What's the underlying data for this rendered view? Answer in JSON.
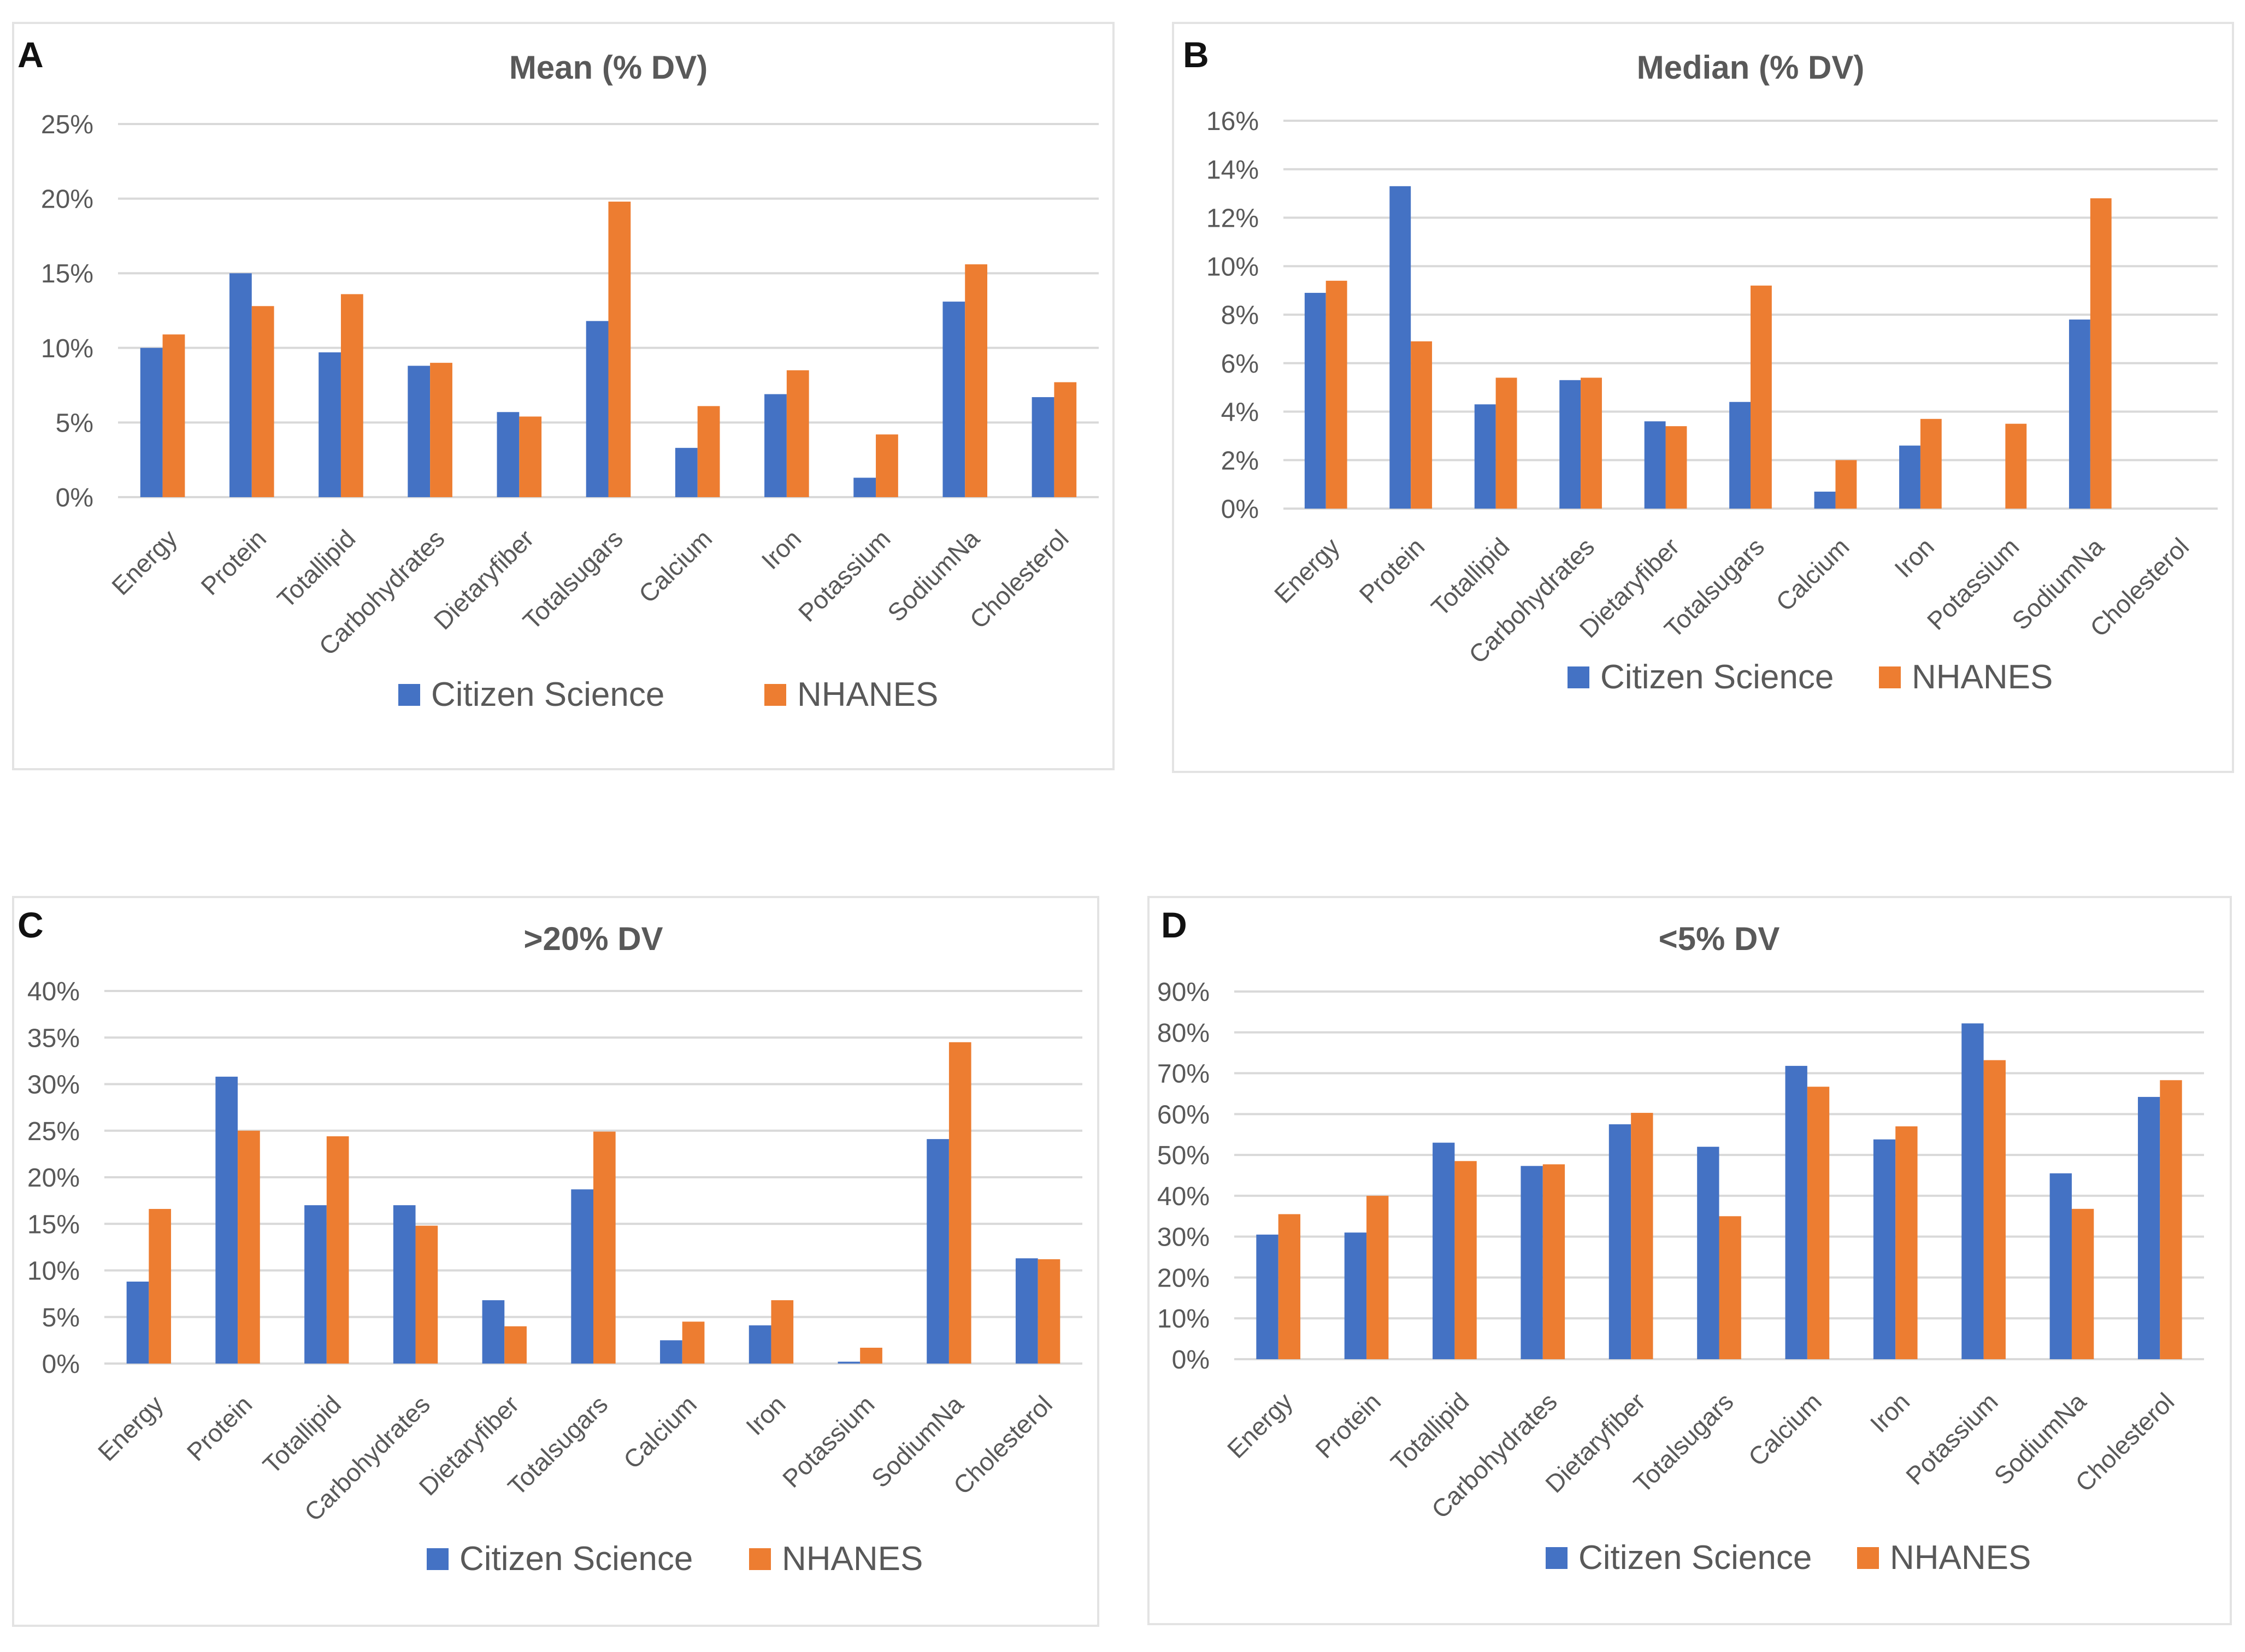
{
  "colors": {
    "citizen": "#4472c4",
    "nhanes": "#ed7d31",
    "grid": "#d9d9d9",
    "text": "#595959"
  },
  "chart_data": [
    {
      "panel": "A",
      "type": "bar",
      "title": "Mean (% DV)",
      "categories": [
        "Energy",
        "Protein",
        "Totallipid",
        "Carbohydrates",
        "Dietaryfiber",
        "Totalsugars",
        "Calcium",
        "Iron",
        "Potassium",
        "SodiumNa",
        "Cholesterol"
      ],
      "series": [
        {
          "name": "Citizen Science",
          "values": [
            10.0,
            15.0,
            9.7,
            8.8,
            5.7,
            11.8,
            3.3,
            6.9,
            1.3,
            13.1,
            6.7
          ]
        },
        {
          "name": "NHANES",
          "values": [
            10.9,
            12.8,
            13.6,
            9.0,
            5.4,
            19.8,
            6.1,
            8.5,
            4.2,
            15.6,
            7.7
          ]
        }
      ],
      "ylim": [
        0,
        25
      ],
      "yticks": [
        0,
        5,
        10,
        15,
        20,
        25
      ],
      "tick_labels": [
        "0%",
        "5%",
        "10%",
        "15%",
        "20%",
        "25%"
      ],
      "xlabel": "",
      "ylabel": "",
      "legend": "bottom",
      "grid": true
    },
    {
      "panel": "B",
      "type": "bar",
      "title": "Median (% DV)",
      "categories": [
        "Energy",
        "Protein",
        "Totallipid",
        "Carbohydrates",
        "Dietaryfiber",
        "Totalsugars",
        "Calcium",
        "Iron",
        "Potassium",
        "SodiumNa",
        "Cholesterol"
      ],
      "series": [
        {
          "name": "Citizen Science",
          "values": [
            8.9,
            13.3,
            4.3,
            5.3,
            3.6,
            4.4,
            0.7,
            2.6,
            0.0,
            7.8,
            0.0
          ]
        },
        {
          "name": "NHANES",
          "values": [
            9.4,
            6.9,
            5.4,
            5.4,
            3.4,
            9.2,
            2.0,
            3.7,
            3.5,
            12.8,
            0.0
          ]
        }
      ],
      "ylim": [
        0,
        16
      ],
      "yticks": [
        0,
        2,
        4,
        6,
        8,
        10,
        12,
        14,
        16
      ],
      "tick_labels": [
        "0%",
        "2%",
        "4%",
        "6%",
        "8%",
        "10%",
        "12%",
        "14%",
        "16%"
      ],
      "xlabel": "",
      "ylabel": "",
      "legend": "bottom",
      "grid": true
    },
    {
      "panel": "C",
      "type": "bar",
      "title": ">20% DV",
      "categories": [
        "Energy",
        "Protein",
        "Totallipid",
        "Carbohydrates",
        "Dietaryfiber",
        "Totalsugars",
        "Calcium",
        "Iron",
        "Potassium",
        "SodiumNa",
        "Cholesterol"
      ],
      "series": [
        {
          "name": "Citizen Science",
          "values": [
            8.8,
            30.8,
            17.0,
            17.0,
            6.8,
            18.7,
            2.5,
            4.1,
            0.2,
            24.1,
            11.3
          ]
        },
        {
          "name": "NHANES",
          "values": [
            16.6,
            25.0,
            24.4,
            14.8,
            4.0,
            24.9,
            4.5,
            6.8,
            1.7,
            34.5,
            11.2
          ]
        }
      ],
      "ylim": [
        0,
        40
      ],
      "yticks": [
        0,
        5,
        10,
        15,
        20,
        25,
        30,
        35,
        40
      ],
      "tick_labels": [
        "0%",
        "5%",
        "10%",
        "15%",
        "20%",
        "25%",
        "30%",
        "35%",
        "40%"
      ],
      "xlabel": "",
      "ylabel": "",
      "legend": "bottom",
      "grid": true
    },
    {
      "panel": "D",
      "type": "bar",
      "title": "<5% DV",
      "categories": [
        "Energy",
        "Protein",
        "Totallipid",
        "Carbohydrates",
        "Dietaryfiber",
        "Totalsugars",
        "Calcium",
        "Iron",
        "Potassium",
        "SodiumNa",
        "Cholesterol"
      ],
      "series": [
        {
          "name": "Citizen Science",
          "values": [
            30.5,
            31.0,
            53.0,
            47.3,
            57.5,
            52.0,
            71.8,
            53.8,
            82.2,
            45.5,
            64.2
          ]
        },
        {
          "name": "NHANES",
          "values": [
            35.5,
            40.0,
            48.5,
            47.7,
            60.3,
            35.0,
            66.7,
            57.0,
            73.2,
            36.8,
            68.3
          ]
        }
      ],
      "ylim": [
        0,
        90
      ],
      "yticks": [
        0,
        10,
        20,
        30,
        40,
        50,
        60,
        70,
        80,
        90
      ],
      "tick_labels": [
        "0%",
        "10%",
        "20%",
        "30%",
        "40%",
        "50%",
        "60%",
        "70%",
        "80%",
        "90%"
      ],
      "xlabel": "",
      "ylabel": "",
      "legend": "bottom",
      "grid": true
    }
  ]
}
